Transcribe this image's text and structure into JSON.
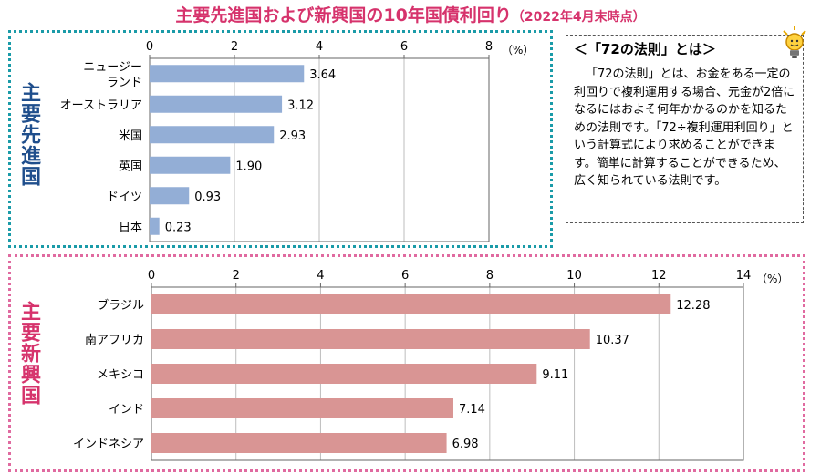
{
  "title": {
    "main": "主要先進国および新興国の10年国債利回り",
    "date": "（2022年4月末時点）"
  },
  "panels": {
    "developed_label": "主要先進国",
    "emerging_label": "主要新興国"
  },
  "colors": {
    "developed_bar": "#93aed6",
    "emerging_bar": "#d99594",
    "title": "#d6336c",
    "developed_border": "#1a9ba8",
    "emerging_border": "#e06aa0"
  },
  "callout": {
    "title": "＜「72の法則」とは＞",
    "body": "「72の法則」とは、お金をある一定の利回りで複利運用する場合、元金が2倍になるにはおよそ何年かかるのかを知るための法則です。「72÷複利運用利回り」という計算式により求めることができます。簡単に計算することができるため、広く知られている法則です。",
    "icon": "lightbulb-icon"
  },
  "chart_data": [
    {
      "type": "bar",
      "orientation": "horizontal",
      "categories": [
        "ニュージーランド",
        "オーストラリア",
        "米国",
        "英国",
        "ドイツ",
        "日本"
      ],
      "category_lines": [
        [
          "ニュージー",
          "ランド"
        ],
        [
          "オーストラリア"
        ],
        [
          "米国"
        ],
        [
          "英国"
        ],
        [
          "ドイツ"
        ],
        [
          "日本"
        ]
      ],
      "values": [
        3.64,
        3.12,
        2.93,
        1.9,
        0.93,
        0.23
      ],
      "value_labels": [
        "3.64",
        "3.12",
        "2.93",
        "1.90",
        "0.93",
        "0.23"
      ],
      "xlim": [
        0,
        8
      ],
      "ticks": [
        0,
        2,
        4,
        6,
        8
      ],
      "unit": "（%）",
      "grid": true
    },
    {
      "type": "bar",
      "orientation": "horizontal",
      "categories": [
        "ブラジル",
        "南アフリカ",
        "メキシコ",
        "インド",
        "インドネシア"
      ],
      "category_lines": [
        [
          "ブラジル"
        ],
        [
          "南アフリカ"
        ],
        [
          "メキシコ"
        ],
        [
          "インド"
        ],
        [
          "インドネシア"
        ]
      ],
      "values": [
        12.28,
        10.37,
        9.11,
        7.14,
        6.98
      ],
      "value_labels": [
        "12.28",
        "10.37",
        "9.11",
        "7.14",
        "6.98"
      ],
      "xlim": [
        0,
        14
      ],
      "ticks": [
        0,
        2,
        4,
        6,
        8,
        10,
        12,
        14
      ],
      "unit": "（%）",
      "grid": true
    }
  ]
}
